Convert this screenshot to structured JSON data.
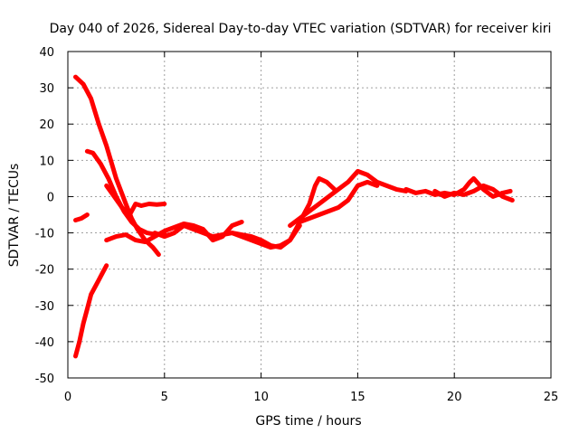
{
  "chart_data": {
    "type": "line",
    "title": "Day 040 of 2026, Sidereal Day-to-day VTEC variation (SDTVAR) for receiver kiri",
    "xlabel": "GPS time / hours",
    "ylabel": "SDTVAR / TECUs",
    "xlim": [
      0,
      25
    ],
    "ylim": [
      -50,
      40
    ],
    "xticks": [
      0,
      5,
      10,
      15,
      20,
      25
    ],
    "yticks": [
      -50,
      -40,
      -30,
      -20,
      -10,
      0,
      10,
      20,
      30,
      40
    ],
    "grid": true,
    "color": "#ff0000",
    "series": [
      {
        "name": "trace-1",
        "x": [
          0.4,
          0.8,
          1.2,
          1.6,
          2.0,
          2.5,
          3.0,
          3.3,
          3.6,
          4.0,
          4.4,
          4.7
        ],
        "y": [
          33,
          31,
          27,
          20,
          14,
          5,
          -2,
          -6,
          -9,
          -12,
          -14,
          -16
        ]
      },
      {
        "name": "trace-2",
        "x": [
          0.4,
          0.6,
          0.8,
          1.0,
          1.2,
          1.4,
          1.6,
          1.8,
          2.0
        ],
        "y": [
          -44,
          -40,
          -35,
          -31,
          -27,
          -25,
          -23,
          -21,
          -19
        ]
      },
      {
        "name": "trace-3",
        "x": [
          0.4,
          0.7,
          1.0
        ],
        "y": [
          -6.5,
          -6,
          -5
        ]
      },
      {
        "name": "trace-4",
        "x": [
          1.0,
          1.3,
          1.7,
          2.1,
          2.5,
          2.9,
          3.3,
          3.7,
          4.1,
          4.6,
          5.0
        ],
        "y": [
          12.5,
          12,
          9,
          5,
          0,
          -4,
          -7,
          -9,
          -10,
          -10.5,
          -10
        ]
      },
      {
        "name": "trace-5",
        "x": [
          2.0,
          2.4,
          2.8,
          3.2,
          3.5,
          3.8,
          4.2,
          4.6,
          5.0
        ],
        "y": [
          3,
          0,
          -3,
          -5,
          -2,
          -2.5,
          -2,
          -2.2,
          -2
        ]
      },
      {
        "name": "trace-6",
        "x": [
          2.0,
          2.5,
          3.0,
          3.5,
          4.0,
          4.5,
          5.0,
          5.5,
          6.0,
          6.5,
          7.0,
          7.5,
          8.0,
          8.5,
          9.0
        ],
        "y": [
          -12,
          -11,
          -10.5,
          -12,
          -12.5,
          -11,
          -9.5,
          -8.5,
          -7.5,
          -8,
          -9,
          -12,
          -11,
          -8,
          -7
        ]
      },
      {
        "name": "trace-7",
        "x": [
          4.5,
          5.0,
          5.5,
          6.0,
          6.5,
          7.0,
          7.5,
          8.0,
          8.5,
          9.0,
          9.5,
          10.0,
          10.5,
          11.0,
          11.5
        ],
        "y": [
          -10,
          -11,
          -10,
          -8,
          -9,
          -10,
          -11,
          -10.5,
          -10,
          -11,
          -12,
          -13,
          -14,
          -13.5,
          -12
        ]
      },
      {
        "name": "trace-8",
        "x": [
          8.5,
          9.0,
          9.5,
          10.0,
          10.5,
          11.0,
          11.5,
          12.0
        ],
        "y": [
          -10,
          -10.5,
          -11,
          -12,
          -13.5,
          -14,
          -12,
          -8
        ]
      },
      {
        "name": "trace-9",
        "x": [
          11.5,
          12.0,
          12.5,
          12.8,
          13.0,
          13.4,
          13.8
        ],
        "y": [
          -12,
          -7,
          -2,
          3,
          5,
          4,
          2
        ]
      },
      {
        "name": "trace-10",
        "x": [
          11.5,
          12.0,
          12.5,
          13.0,
          13.5,
          14.0,
          14.5,
          15.0,
          15.5,
          16.0,
          16.5,
          17.0,
          17.5
        ],
        "y": [
          -8,
          -6,
          -4,
          -2,
          0,
          2,
          4,
          7,
          6,
          4,
          3,
          2,
          1.5
        ]
      },
      {
        "name": "trace-11",
        "x": [
          12.0,
          13.0,
          14.0,
          14.5,
          15.0,
          15.5,
          16.0
        ],
        "y": [
          -7,
          -5,
          -3,
          -1,
          3,
          4,
          3
        ]
      },
      {
        "name": "trace-12",
        "x": [
          17.5,
          18.0,
          18.5,
          19.0,
          19.5,
          20.0,
          20.5,
          20.8,
          21.0,
          21.5,
          22.0,
          22.5,
          22.9
        ],
        "y": [
          2,
          1,
          1.5,
          0.5,
          1,
          0.5,
          2,
          4,
          5,
          2,
          0,
          1,
          1.5
        ]
      },
      {
        "name": "trace-13",
        "x": [
          19.0,
          19.5,
          20.0,
          20.5,
          21.0,
          21.5,
          22.0,
          22.5,
          23.0
        ],
        "y": [
          1.5,
          0,
          1,
          0.5,
          1.5,
          3,
          2,
          0,
          -1
        ]
      }
    ]
  }
}
